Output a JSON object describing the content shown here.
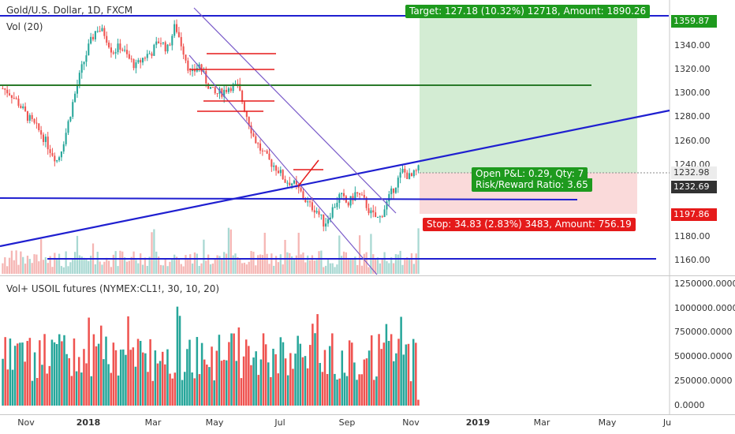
{
  "main_pane": {
    "symbol_title": "Gold/U.S. Dollar, 1D, FXCM",
    "volume_study": "Vol (20)"
  },
  "lower_pane": {
    "study_title": "Vol+ USOIL futures (NYMEX:CL1!, 30, 10, 20)"
  },
  "position": {
    "target_label": "Target: 127.18 (10.32%) 12718, Amount: 1890.26",
    "stop_label": "Stop: 34.83 (2.83%) 3483, Amount: 756.19",
    "open_pnl_label": "Open P&L: 0.29, Qty: 7",
    "risk_reward_label": "Risk/Reward Ratio: 3.65"
  },
  "price_axis": {
    "ticks": [
      "1340.00",
      "1320.00",
      "1300.00",
      "1280.00",
      "1260.00",
      "1240.00",
      "1180.00",
      "1160.00"
    ],
    "target_price": "1359.87",
    "current_price": "1232.98",
    "entry_price": "1232.69",
    "stop_price": "1197.86"
  },
  "volume_axis": {
    "ticks": [
      "1250000.0000",
      "1000000.0000",
      "750000.0000",
      "500000.0000",
      "250000.0000",
      "0.0000"
    ]
  },
  "time_axis": {
    "labels": [
      "Nov",
      "2018",
      "Mar",
      "May",
      "Jul",
      "Sep",
      "Nov",
      "2019",
      "Mar",
      "May",
      "Ju"
    ]
  },
  "colors": {
    "target_zone": "#d3ecd3",
    "target_tag": "#1e9a1e",
    "stop_zone": "#fadada",
    "stop_tag": "#e51a1a",
    "up_candle": "#26a69a",
    "down_candle": "#ef5350",
    "trend_blue": "#1f1fd0",
    "support_green": "#2a7a2a",
    "channel_purple": "#7a5bc9",
    "entry_tag": "#323232"
  },
  "chart_data": {
    "type": "candlestick",
    "series_price_path": [
      1300,
      1296,
      1288,
      1278,
      1270,
      1262,
      1250,
      1240,
      1262,
      1290,
      1315,
      1335,
      1350,
      1345,
      1330,
      1335,
      1325,
      1318,
      1326,
      1330,
      1340,
      1332,
      1352,
      1332,
      1310,
      1320,
      1305,
      1295,
      1297,
      1302,
      1301,
      1280,
      1260,
      1248,
      1240,
      1234,
      1224,
      1222,
      1214,
      1204,
      1200,
      1188,
      1200,
      1212,
      1204,
      1214,
      1208,
      1196,
      1192,
      1206,
      1220,
      1232,
      1226,
      1233
    ],
    "volume_study_ylim": [
      0,
      1250000
    ]
  }
}
